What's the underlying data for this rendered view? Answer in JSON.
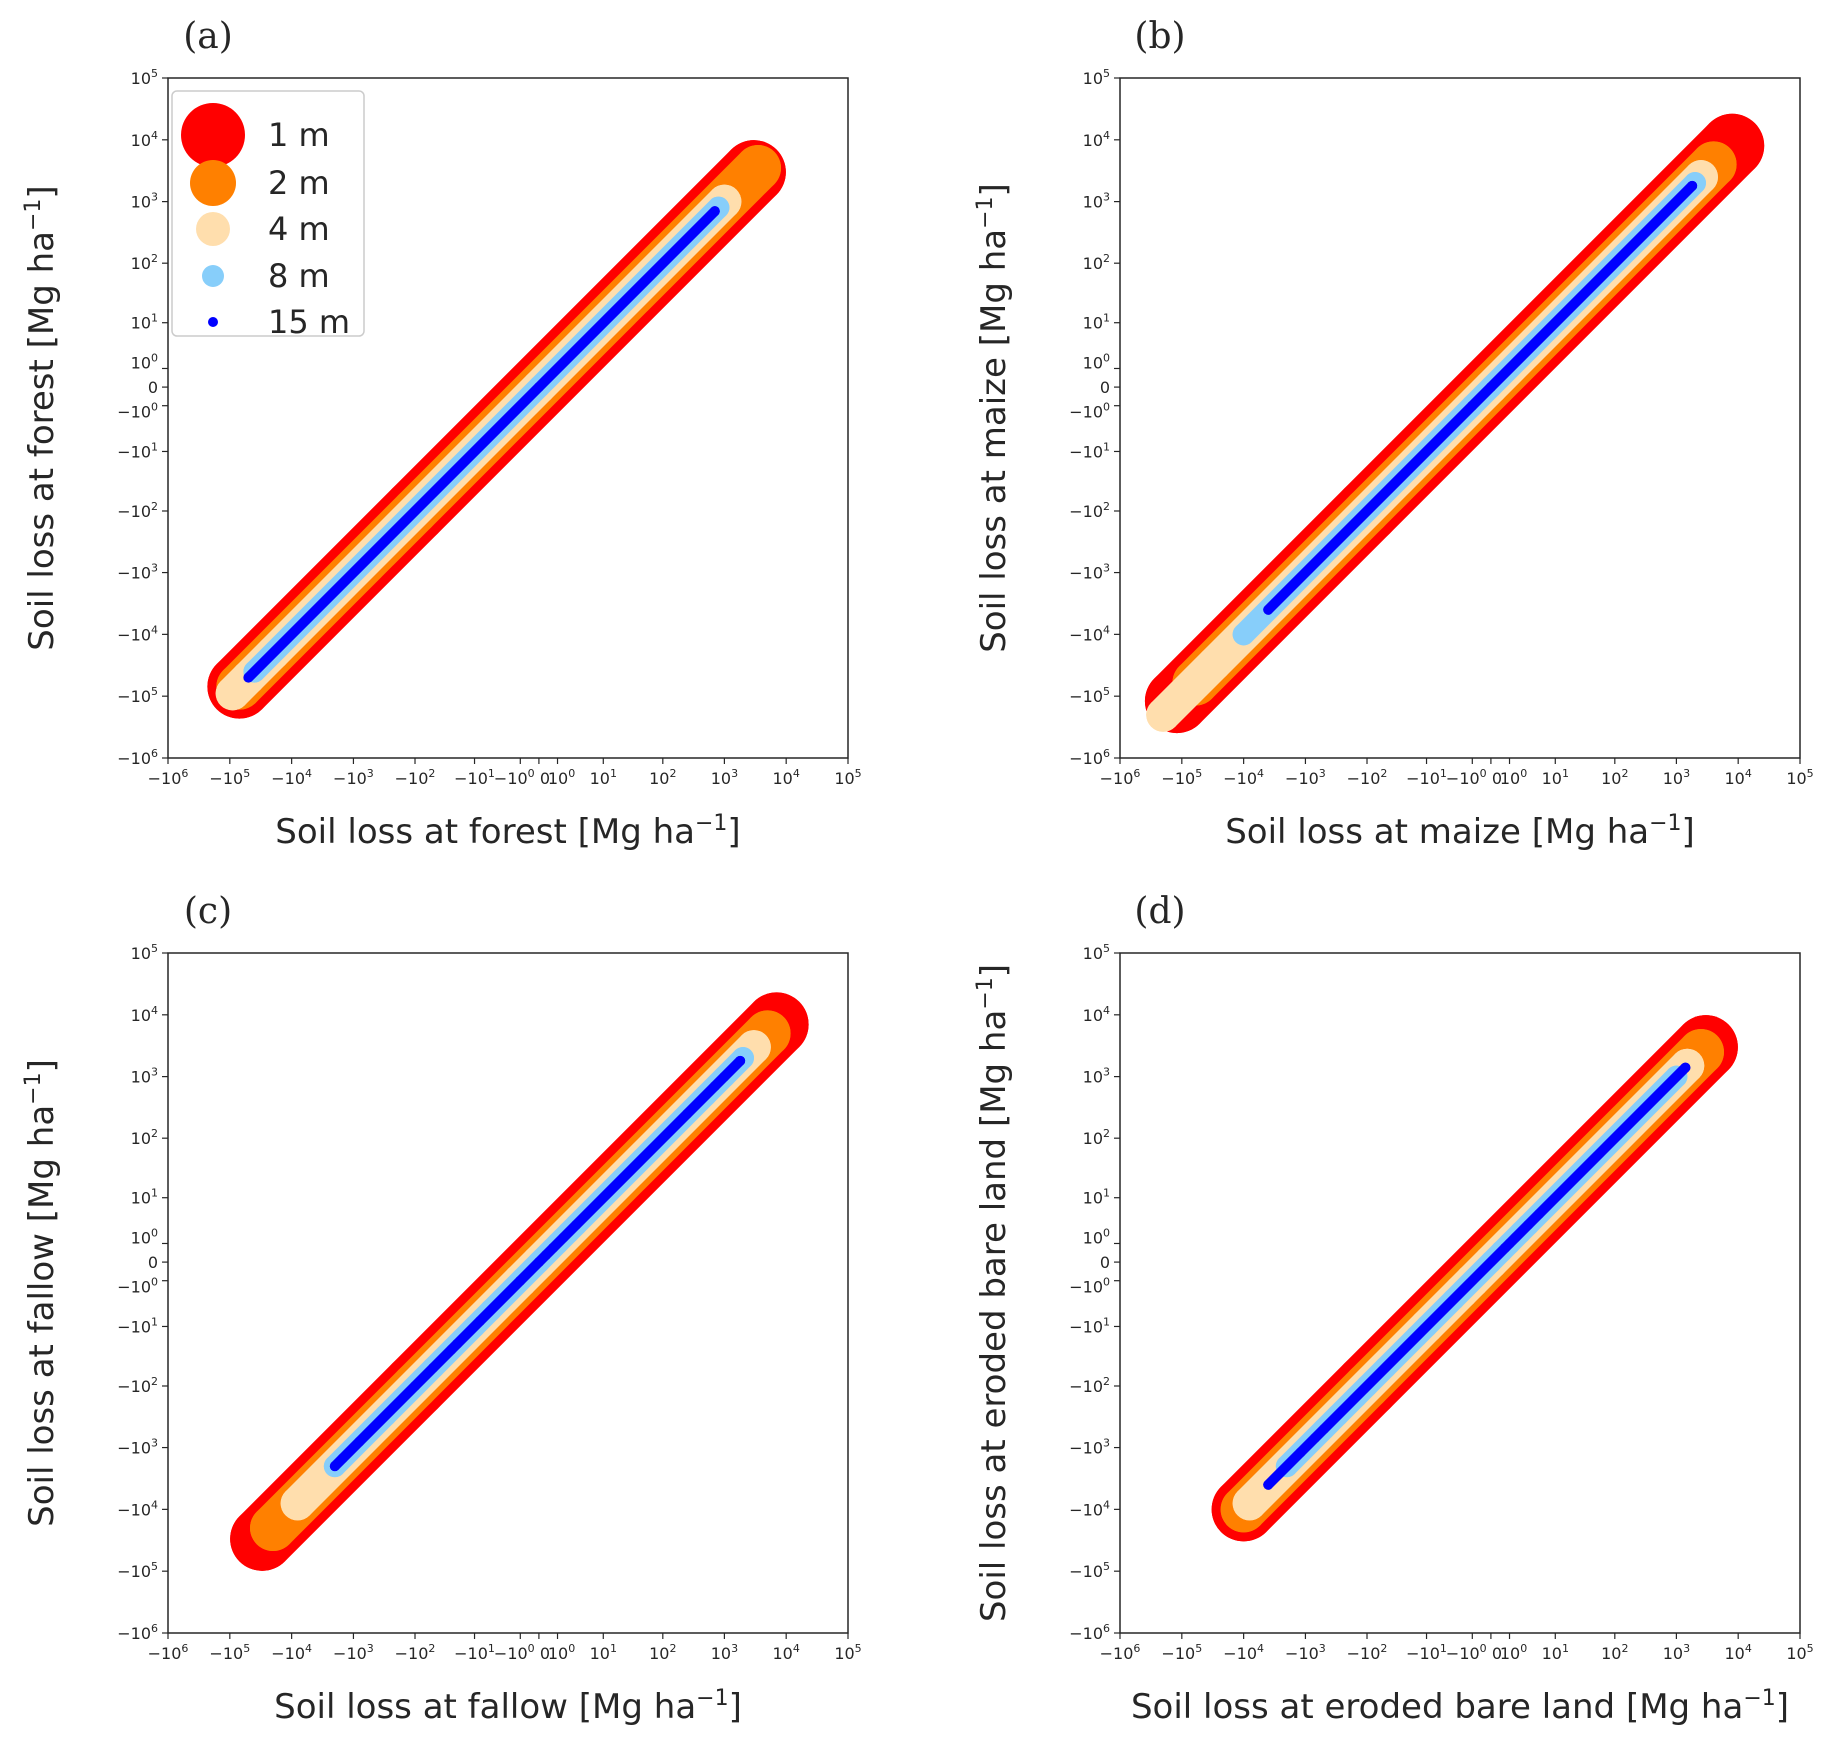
{
  "chart_data": [
    {
      "type": "scatter",
      "panel_label": "(a)",
      "xlabel": "Soil loss at forest [Mg ha",
      "ylabel": "Soil loss at forest [Mg ha",
      "unit_exponent": "−1",
      "axis_label_close": "]",
      "x_scale": "symlog",
      "y_scale": "symlog",
      "xlim": [
        -1000000,
        100000
      ],
      "ylim": [
        -1000000,
        100000
      ],
      "legend": true,
      "legend_position": "top-left",
      "series": [
        {
          "name": "1 m",
          "color": "#ff0000",
          "marker_radius_rank": 5,
          "x": [
            -70000,
            -100,
            3000
          ],
          "y": [
            -70000,
            -100,
            3000
          ]
        },
        {
          "name": "2 m",
          "color": "#ff8000",
          "marker_radius_rank": 4,
          "x": [
            -70000,
            -100,
            3500
          ],
          "y": [
            -70000,
            -100,
            3500
          ]
        },
        {
          "name": "4 m",
          "color": "#ffdead",
          "marker_radius_rank": 3,
          "x": [
            -90000,
            -50000,
            -20000,
            0,
            1000
          ],
          "y": [
            -90000,
            -50000,
            -20000,
            0,
            1000
          ]
        },
        {
          "name": "8 m",
          "color": "#87cefa",
          "marker_radius_rank": 2,
          "x": [
            -40000,
            0,
            800
          ],
          "y": [
            -40000,
            0,
            800
          ]
        },
        {
          "name": "15 m",
          "color": "#0000ff",
          "marker_radius_rank": 1,
          "x": [
            -50000,
            0,
            700
          ],
          "y": [
            -50000,
            0,
            700
          ]
        }
      ]
    },
    {
      "type": "scatter",
      "panel_label": "(b)",
      "xlabel": "Soil loss at maize [Mg ha",
      "ylabel": "Soil loss at maize [Mg ha",
      "unit_exponent": "−1",
      "axis_label_close": "]",
      "x_scale": "symlog",
      "y_scale": "symlog",
      "xlim": [
        -1000000,
        100000
      ],
      "ylim": [
        -1000000,
        100000
      ],
      "legend": false,
      "series": [
        {
          "name": "1 m",
          "color": "#ff0000",
          "marker_radius_rank": 5,
          "x": [
            -120000,
            -100,
            8000
          ],
          "y": [
            -120000,
            -100,
            8000
          ]
        },
        {
          "name": "2 m",
          "color": "#ff8000",
          "marker_radius_rank": 4,
          "x": [
            -60000,
            -100,
            4000
          ],
          "y": [
            -60000,
            -100,
            4000
          ]
        },
        {
          "name": "4 m",
          "color": "#ffdead",
          "marker_radius_rank": 3,
          "x": [
            -200000,
            -30000,
            0,
            2500
          ],
          "y": [
            -200000,
            -30000,
            0,
            2500
          ]
        },
        {
          "name": "8 m",
          "color": "#87cefa",
          "marker_radius_rank": 2,
          "x": [
            -10000,
            -1,
            0,
            2000
          ],
          "y": [
            -10000,
            -1,
            0,
            2000
          ]
        },
        {
          "name": "15 m",
          "color": "#0000ff",
          "marker_radius_rank": 1,
          "x": [
            -4000,
            -1,
            0,
            1800
          ],
          "y": [
            -4000,
            -1,
            0,
            1800
          ]
        }
      ]
    },
    {
      "type": "scatter",
      "panel_label": "(c)",
      "xlabel": "Soil loss at fallow [Mg ha",
      "ylabel": "Soil loss at fallow [Mg ha",
      "unit_exponent": "−1",
      "axis_label_close": "]",
      "x_scale": "symlog",
      "y_scale": "symlog",
      "xlim": [
        -1000000,
        100000
      ],
      "ylim": [
        -1000000,
        100000
      ],
      "legend": false,
      "series": [
        {
          "name": "1 m",
          "color": "#ff0000",
          "marker_radius_rank": 5,
          "x": [
            -30000,
            -100,
            7000
          ],
          "y": [
            -30000,
            -100,
            7000
          ]
        },
        {
          "name": "2 m",
          "color": "#ff8000",
          "marker_radius_rank": 4,
          "x": [
            -20000,
            -100,
            5000
          ],
          "y": [
            -20000,
            -100,
            5000
          ]
        },
        {
          "name": "4 m",
          "color": "#ffdead",
          "marker_radius_rank": 3,
          "x": [
            -8000,
            -1,
            0,
            3000
          ],
          "y": [
            -8000,
            -1,
            0,
            3000
          ]
        },
        {
          "name": "8 m",
          "color": "#87cefa",
          "marker_radius_rank": 2,
          "x": [
            -2000,
            -300,
            -50,
            -10,
            -5,
            0,
            1,
            2,
            3,
            500,
            1000,
            2000
          ],
          "y": [
            -2000,
            -300,
            -50,
            -10,
            -5,
            0,
            1,
            2,
            3,
            500,
            1000,
            2000
          ]
        },
        {
          "name": "15 m",
          "color": "#0000ff",
          "marker_radius_rank": 1,
          "x": [
            -2000,
            -1500,
            -800,
            -100,
            -50,
            -25,
            -20,
            -8,
            -1,
            0,
            0.3,
            0.7,
            1.5,
            3,
            250,
            700,
            1000,
            1800
          ],
          "y": [
            -2000,
            -1500,
            -800,
            -100,
            -50,
            -25,
            -20,
            -8,
            -1,
            0,
            0.3,
            0.7,
            1.5,
            3,
            250,
            700,
            1000,
            1800
          ]
        }
      ]
    },
    {
      "type": "scatter",
      "panel_label": "(d)",
      "xlabel": "Soil loss at eroded bare land [Mg ha",
      "ylabel": "Soil loss at eroded bare land [Mg ha",
      "unit_exponent": "−1",
      "axis_label_close": "]",
      "x_scale": "symlog",
      "y_scale": "symlog",
      "xlim": [
        -1000000,
        100000
      ],
      "ylim": [
        -1000000,
        100000
      ],
      "legend": false,
      "series": [
        {
          "name": "1 m",
          "color": "#ff0000",
          "marker_radius_rank": 5,
          "x": [
            -10000,
            -100,
            3000
          ],
          "y": [
            -10000,
            -100,
            3000
          ]
        },
        {
          "name": "2 m",
          "color": "#ff8000",
          "marker_radius_rank": 4,
          "x": [
            -10000,
            -100,
            2500
          ],
          "y": [
            -10000,
            -100,
            2500
          ]
        },
        {
          "name": "4 m",
          "color": "#ffdead",
          "marker_radius_rank": 3,
          "x": [
            -8000,
            -10,
            -2,
            -1,
            0,
            1500
          ],
          "y": [
            -8000,
            -10,
            -2,
            -1,
            0,
            1500
          ]
        },
        {
          "name": "8 m",
          "color": "#87cefa",
          "marker_radius_rank": 2,
          "x": [
            -2000,
            -500,
            -300,
            -150,
            -100,
            -50,
            -15,
            -10,
            -3,
            0,
            0.5,
            1,
            2,
            3,
            1000
          ],
          "y": [
            -2000,
            -500,
            -300,
            -150,
            -100,
            -50,
            -15,
            -10,
            -3,
            0,
            0.5,
            1,
            2,
            3,
            1000
          ]
        },
        {
          "name": "15 m",
          "color": "#0000ff",
          "marker_radius_rank": 1,
          "x": [
            -4000,
            -1200,
            -700,
            -500,
            0.7,
            1,
            1.5,
            3,
            5,
            1400
          ],
          "y": [
            -4000,
            -1200,
            -700,
            -500,
            0.7,
            1,
            1.5,
            3,
            5,
            1400
          ]
        }
      ]
    }
  ]
}
